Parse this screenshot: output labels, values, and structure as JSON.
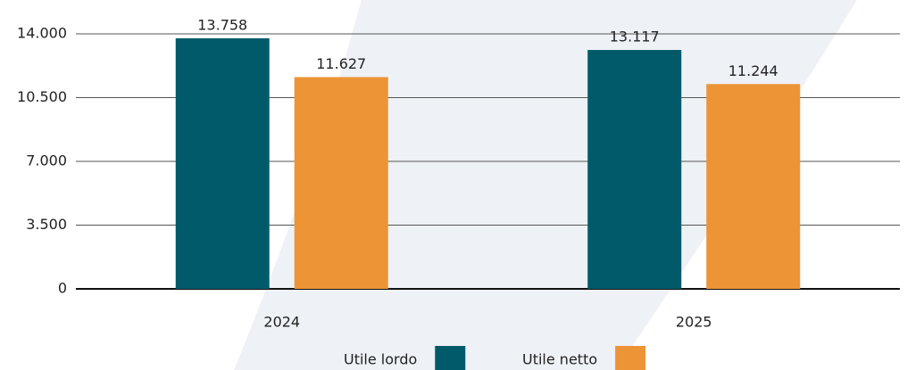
{
  "chart_data": {
    "type": "bar",
    "categories": [
      "2024",
      "2025"
    ],
    "series": [
      {
        "name": "Utile lordo",
        "color": "#005a6a",
        "values": [
          13758,
          13117
        ],
        "value_labels": [
          "13.758",
          "13.117"
        ]
      },
      {
        "name": "Utile netto",
        "color": "#ec9436",
        "values": [
          11627,
          11244
        ],
        "value_labels": [
          "11.627",
          "11.244"
        ]
      }
    ],
    "ylim": [
      0,
      14000
    ],
    "yticks": [
      0,
      {
        "value": 3500,
        "label": "3.500"
      },
      {
        "value": 7000,
        "label": "7.000"
      },
      {
        "value": 10500,
        "label": "10.500"
      },
      {
        "value": 14000,
        "label": "14.000"
      }
    ],
    "grid": true,
    "legend": "bottom"
  }
}
